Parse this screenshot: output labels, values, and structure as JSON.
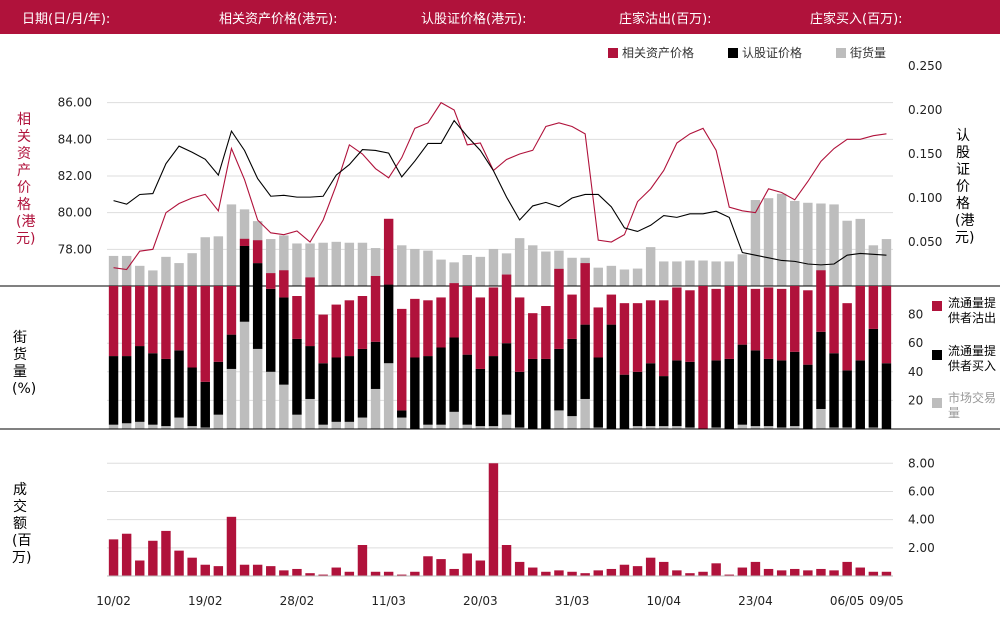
{
  "header": {
    "fields": [
      "日期(日/月/年):",
      "相关资产价格(港元):",
      "认股证价格(港元):",
      "庄家沽出(百万):",
      "庄家买入(百万):"
    ]
  },
  "colors": {
    "brand": "#b0123b",
    "asset": "#b0123b",
    "warrant": "#000000",
    "outstanding": "#bdbdbd",
    "grid": "#dddddd"
  },
  "legend": {
    "asset": "相关资产价格",
    "warrant": "认股证价格",
    "outstanding": "街货量"
  },
  "panel1": {
    "left_label": "相关资产价格(港元)",
    "right_label": "认股证价格(港元)"
  },
  "panel2": {
    "left_label": "街货量(%)",
    "legend": {
      "sell": "流通量提供者沽出",
      "buy": "流通量提供者买入",
      "market": "市场交易量"
    }
  },
  "panel3": {
    "left_label": "成交额(百万)"
  },
  "x_labels": [
    "10/02",
    "19/02",
    "28/02",
    "11/03",
    "20/03",
    "31/03",
    "10/04",
    "23/04",
    "06/05",
    "09/05"
  ],
  "chart_data": [
    {
      "type": "line",
      "title": "",
      "x_count": 60,
      "x_tick_labels": [
        "10/02",
        "19/02",
        "28/02",
        "11/03",
        "20/03",
        "31/03",
        "10/04",
        "23/04",
        "06/05",
        "09/05"
      ],
      "x_tick_index": [
        0,
        7,
        14,
        21,
        28,
        35,
        42,
        49,
        56,
        59
      ],
      "left_axis": {
        "label": "相关资产价格(港元)",
        "ylim": [
          76,
          88
        ],
        "ticks": [
          78,
          80,
          82,
          84,
          86
        ],
        "tick_labels": [
          "78.00",
          "80.00",
          "82.00",
          "84.00",
          "86.00"
        ]
      },
      "right_axis": {
        "label": "认股证价格(港元)",
        "ylim": [
          0,
          0.25
        ],
        "ticks": [
          0.05,
          0.1,
          0.15,
          0.2,
          0.25
        ],
        "tick_labels": [
          "0.050",
          "0.100",
          "0.150",
          "0.200",
          "0.250"
        ]
      },
      "series": [
        {
          "name": "相关资产价格",
          "axis": "left",
          "type": "line",
          "values": [
            77.0,
            76.9,
            77.9,
            78.0,
            80.0,
            80.5,
            80.8,
            81.0,
            80.1,
            83.5,
            81.8,
            79.6,
            78.9,
            78.8,
            79.0,
            78.4,
            79.6,
            81.5,
            83.7,
            83.2,
            82.4,
            81.9,
            83.0,
            84.6,
            84.9,
            86.0,
            85.6,
            83.7,
            83.8,
            82.3,
            82.9,
            83.2,
            83.4,
            84.7,
            84.9,
            84.7,
            84.3,
            78.5,
            78.4,
            78.8,
            80.6,
            81.3,
            82.3,
            83.8,
            84.3,
            84.6,
            83.4,
            80.3,
            80.1,
            80.0,
            81.3,
            81.1,
            80.7,
            81.7,
            82.8,
            83.5,
            84.0,
            84.0,
            84.2,
            84.3
          ]
        },
        {
          "name": "认股证价格",
          "axis": "right",
          "type": "line",
          "values": [
            0.097,
            0.093,
            0.104,
            0.105,
            0.139,
            0.159,
            0.152,
            0.144,
            0.126,
            0.176,
            0.154,
            0.122,
            0.102,
            0.103,
            0.101,
            0.101,
            0.102,
            0.126,
            0.138,
            0.155,
            0.154,
            0.151,
            0.124,
            0.142,
            0.162,
            0.162,
            0.188,
            0.17,
            0.154,
            0.131,
            0.101,
            0.075,
            0.091,
            0.095,
            0.09,
            0.1,
            0.104,
            0.104,
            0.09,
            0.066,
            0.062,
            0.069,
            0.08,
            0.078,
            0.082,
            0.082,
            0.085,
            0.078,
            0.038,
            0.035,
            0.032,
            0.029,
            0.028,
            0.025,
            0.024,
            0.025,
            0.035,
            0.037,
            0.036,
            0.035
          ]
        },
        {
          "name": "街货量",
          "axis": "left",
          "type": "bar",
          "values": [
            77.64,
            77.64,
            77.1,
            76.85,
            77.59,
            77.25,
            77.79,
            78.66,
            78.71,
            80.45,
            80.18,
            79.54,
            78.56,
            78.76,
            78.32,
            78.32,
            78.36,
            78.41,
            78.36,
            78.36,
            78.07,
            78.07,
            78.22,
            78.02,
            77.93,
            77.44,
            77.29,
            77.69,
            77.59,
            78.02,
            77.78,
            78.61,
            78.22,
            77.88,
            77.93,
            77.54,
            77.54,
            77.0,
            77.1,
            76.9,
            76.95,
            78.12,
            77.34,
            77.34,
            77.39,
            77.39,
            77.34,
            77.34,
            77.73,
            80.69,
            80.79,
            81.03,
            80.64,
            80.54,
            80.5,
            80.45,
            79.56,
            79.66,
            78.22,
            78.56
          ]
        }
      ]
    },
    {
      "type": "bar",
      "title": "",
      "ylabel": "街货量(%)",
      "ylim": [
        0,
        100
      ],
      "ticks": [
        20,
        40,
        60,
        80
      ],
      "tick_labels": [
        "20",
        "40",
        "60",
        "80"
      ],
      "series": [
        {
          "name": "流通量提供者沽出",
          "values": [
            49,
            49,
            42,
            47,
            51,
            45,
            57,
            67,
            53,
            34,
            5,
            16,
            11,
            19,
            30,
            48,
            34,
            37,
            39,
            37,
            46,
            46,
            71,
            41,
            39,
            35,
            38,
            48,
            50,
            48,
            48,
            52,
            32,
            37,
            56,
            31,
            43,
            35,
            21,
            50,
            48,
            44,
            53,
            51,
            50,
            100,
            50,
            51,
            41,
            43,
            50,
            50,
            46,
            52,
            43,
            47,
            47,
            52,
            30,
            54
          ]
        },
        {
          "name": "流通量提供者买入",
          "values": [
            48,
            47,
            53,
            50,
            47,
            47,
            41,
            32,
            37,
            24,
            53,
            60,
            58,
            61,
            53,
            37,
            43,
            45,
            46,
            48,
            33,
            55,
            5,
            50,
            48,
            54,
            52,
            49,
            40,
            49,
            50,
            39,
            49,
            49,
            43,
            54,
            52,
            49,
            73,
            38,
            38,
            44,
            35,
            46,
            46,
            0,
            47,
            49,
            56,
            53,
            47,
            47,
            52,
            45,
            54,
            52,
            40,
            48,
            69,
            46
          ]
        },
        {
          "name": "市场交易量",
          "values": [
            3,
            4,
            5,
            3,
            2,
            8,
            2,
            1,
            10,
            42,
            75,
            56,
            40,
            31,
            10,
            21,
            3,
            5,
            5,
            8,
            28,
            46,
            8,
            0,
            3,
            3,
            12,
            3,
            2,
            2,
            10,
            1,
            0,
            0,
            13,
            9,
            21,
            1,
            0,
            0,
            2,
            2,
            2,
            2,
            1,
            0,
            1,
            0,
            3,
            2,
            2,
            1,
            2,
            0,
            14,
            1,
            1,
            0,
            1,
            0
          ]
        }
      ]
    },
    {
      "type": "bar",
      "title": "",
      "ylabel": "成交额(百万)",
      "ylim": [
        0,
        8.8
      ],
      "ticks": [
        2,
        4,
        6,
        8
      ],
      "tick_labels": [
        "2.00",
        "4.00",
        "6.00",
        "8.00"
      ],
      "series": [
        {
          "name": "成交额",
          "values": [
            2.6,
            3.0,
            1.1,
            2.5,
            3.2,
            1.8,
            1.3,
            0.8,
            0.7,
            4.2,
            0.8,
            0.8,
            0.7,
            0.4,
            0.5,
            0.2,
            0.1,
            0.6,
            0.3,
            2.2,
            0.3,
            0.3,
            0.1,
            0.3,
            1.4,
            1.2,
            0.5,
            1.6,
            1.1,
            8.0,
            2.2,
            1.0,
            0.6,
            0.3,
            0.4,
            0.3,
            0.2,
            0.4,
            0.5,
            0.8,
            0.7,
            1.3,
            1.0,
            0.4,
            0.2,
            0.3,
            0.9,
            0.1,
            0.6,
            1.0,
            0.5,
            0.4,
            0.5,
            0.4,
            0.5,
            0.4,
            1.0,
            0.6,
            0.3,
            0.3
          ]
        }
      ]
    }
  ]
}
